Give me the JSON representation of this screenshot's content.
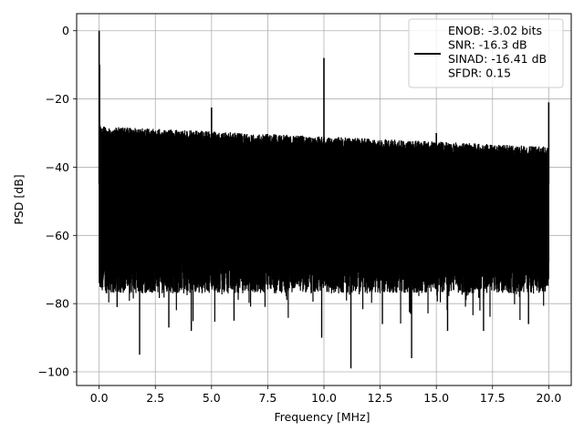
{
  "chart_data": {
    "type": "line",
    "title": "",
    "xlabel": "Frequency [MHz]",
    "ylabel": "PSD [dB]",
    "xlim": [
      -1.0,
      21.0
    ],
    "ylim": [
      -104.0,
      5.0
    ],
    "xticks": [
      0.0,
      2.5,
      5.0,
      7.5,
      10.0,
      12.5,
      15.0,
      17.5,
      20.0
    ],
    "xtick_labels": [
      "0.0",
      "2.5",
      "5.0",
      "7.5",
      "10.0",
      "12.5",
      "15.0",
      "17.5",
      "20.0"
    ],
    "yticks": [
      0,
      -20,
      -40,
      -60,
      -80,
      -100
    ],
    "ytick_labels": [
      "0",
      "−20",
      "−40",
      "−60",
      "−80",
      "−100"
    ],
    "grid": true,
    "legend_position": "top-right",
    "legend_lines": [
      "ENOB: -3.02 bits",
      "SNR: -16.3 dB",
      "SINAD: -16.41 dB",
      "SFDR: 0.15"
    ],
    "line_color": "#000000",
    "noise_floor": {
      "x_range": [
        0.0,
        20.0
      ],
      "upper_envelope_start": -28.0,
      "upper_envelope_end": -34.0,
      "typical_low": -72.0,
      "deep_notches": [
        {
          "x": 1.8,
          "y": -95
        },
        {
          "x": 9.9,
          "y": -90
        },
        {
          "x": 11.2,
          "y": -99
        },
        {
          "x": 13.9,
          "y": -96
        },
        {
          "x": 3.1,
          "y": -87
        },
        {
          "x": 4.1,
          "y": -88
        },
        {
          "x": 15.5,
          "y": -88
        },
        {
          "x": 17.1,
          "y": -88
        },
        {
          "x": 19.1,
          "y": -86
        },
        {
          "x": 0.8,
          "y": -81
        },
        {
          "x": 6.0,
          "y": -85
        },
        {
          "x": 12.6,
          "y": -86
        }
      ]
    },
    "spikes": [
      {
        "x": 0.0,
        "y": 0.0
      },
      {
        "x": 0.02,
        "y": -10.0
      },
      {
        "x": 5.0,
        "y": -22.5
      },
      {
        "x": 10.0,
        "y": -8.0
      },
      {
        "x": 15.0,
        "y": -30.0
      },
      {
        "x": 20.0,
        "y": -21.0
      }
    ]
  }
}
